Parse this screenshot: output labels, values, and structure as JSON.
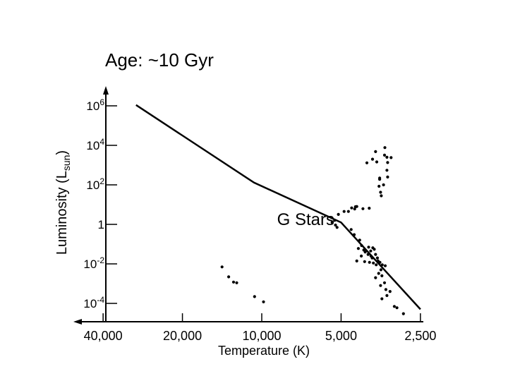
{
  "chart_data": {
    "type": "scatter",
    "title": "Age: ~10 Gyr",
    "xlabel": "Temperature (K)",
    "ylabel": "Luminosity (L",
    "ylabel_sub": "sun",
    "ylabel_close": ")",
    "x_scale": "log, reversed",
    "y_scale": "log",
    "xlim": [
      60000,
      2300
    ],
    "ylim": [
      1e-05,
      10000000
    ],
    "x_ticks": [
      {
        "value": 40000,
        "label": "40,000"
      },
      {
        "value": 20000,
        "label": "20,000"
      },
      {
        "value": 10000,
        "label": "10,000"
      },
      {
        "value": 5000,
        "label": "5,000"
      },
      {
        "value": 2500,
        "label": "2,500"
      }
    ],
    "y_ticks": [
      {
        "value": 1000000,
        "base": "10",
        "exp": "6"
      },
      {
        "value": 10000,
        "base": "10",
        "exp": "4"
      },
      {
        "value": 100,
        "base": "10",
        "exp": "2"
      },
      {
        "value": 1,
        "base": "1",
        "exp": ""
      },
      {
        "value": 0.01,
        "base": "10",
        "exp": "-2"
      },
      {
        "value": 0.0001,
        "base": "10",
        "exp": "-4"
      }
    ],
    "annotations": [
      {
        "text": "G Stars",
        "x": 5300,
        "y": 0.91
      }
    ],
    "main_sequence_line": [
      [
        30000,
        1100000
      ],
      [
        10700,
        130
      ],
      [
        5000,
        1.25
      ],
      [
        2500,
        5e-05
      ]
    ],
    "series": [
      {
        "kind": "red_giant_branch",
        "points": [
          [
            3410,
            7700
          ],
          [
            3420,
            3200
          ],
          [
            3350,
            2500
          ],
          [
            3230,
            2400
          ],
          [
            3700,
            4800
          ],
          [
            3800,
            2000
          ],
          [
            3990,
            1300
          ],
          [
            3660,
            1450
          ],
          [
            3330,
            1350
          ],
          [
            3350,
            550
          ],
          [
            3330,
            250
          ],
          [
            3570,
            220
          ],
          [
            3570,
            190
          ],
          [
            3450,
            100
          ],
          [
            3590,
            85
          ],
          [
            3540,
            42
          ],
          [
            3520,
            28
          ],
          [
            3910,
            6.6
          ],
          [
            4130,
            6.2
          ],
          [
            4360,
            8.0
          ],
          [
            4410,
            7.8
          ],
          [
            4560,
            6.8
          ],
          [
            4690,
            4.5
          ],
          [
            4870,
            4.5
          ],
          [
            5120,
            3.2
          ],
          [
            5290,
            1.6
          ],
          [
            5410,
            1.25
          ],
          [
            5250,
            0.92
          ],
          [
            4440,
            6.0
          ]
        ]
      },
      {
        "kind": "main_sequence_stars",
        "points": [
          [
            5180,
            0.7
          ],
          [
            4580,
            0.55
          ],
          [
            4460,
            0.3
          ],
          [
            4250,
            0.16
          ],
          [
            4180,
            0.085
          ],
          [
            4300,
            0.06
          ],
          [
            4100,
            0.05
          ],
          [
            3930,
            0.07
          ],
          [
            4050,
            0.04
          ],
          [
            3790,
            0.065
          ],
          [
            3740,
            0.055
          ],
          [
            3860,
            0.045
          ],
          [
            4190,
            0.025
          ],
          [
            3950,
            0.03
          ],
          [
            3850,
            0.025
          ],
          [
            3810,
            0.02
          ],
          [
            3700,
            0.03
          ],
          [
            3640,
            0.02
          ],
          [
            4360,
            0.014
          ],
          [
            4070,
            0.013
          ],
          [
            3900,
            0.012
          ],
          [
            3770,
            0.011
          ],
          [
            3620,
            0.014
          ],
          [
            3560,
            0.012
          ],
          [
            3680,
            0.009
          ],
          [
            3490,
            0.009
          ],
          [
            3400,
            0.008
          ],
          [
            3530,
            0.005
          ],
          [
            3600,
            0.0033
          ],
          [
            3700,
            0.002
          ],
          [
            3500,
            0.0025
          ],
          [
            3420,
            0.0011
          ],
          [
            3540,
            0.0008
          ],
          [
            3380,
            0.0005
          ],
          [
            3260,
            0.0004
          ],
          [
            3350,
            0.00025
          ],
          [
            3500,
            0.00017
          ],
          [
            3140,
            7e-05
          ],
          [
            3070,
            6e-05
          ],
          [
            2900,
            3e-05
          ]
        ]
      },
      {
        "kind": "white_dwarfs",
        "points": [
          [
            14150,
            0.007
          ],
          [
            13350,
            0.0022
          ],
          [
            12800,
            0.0012
          ],
          [
            12450,
            0.0011
          ],
          [
            10650,
            0.00022
          ],
          [
            9850,
            0.00012
          ]
        ]
      }
    ],
    "grid": false,
    "legend": "none"
  }
}
